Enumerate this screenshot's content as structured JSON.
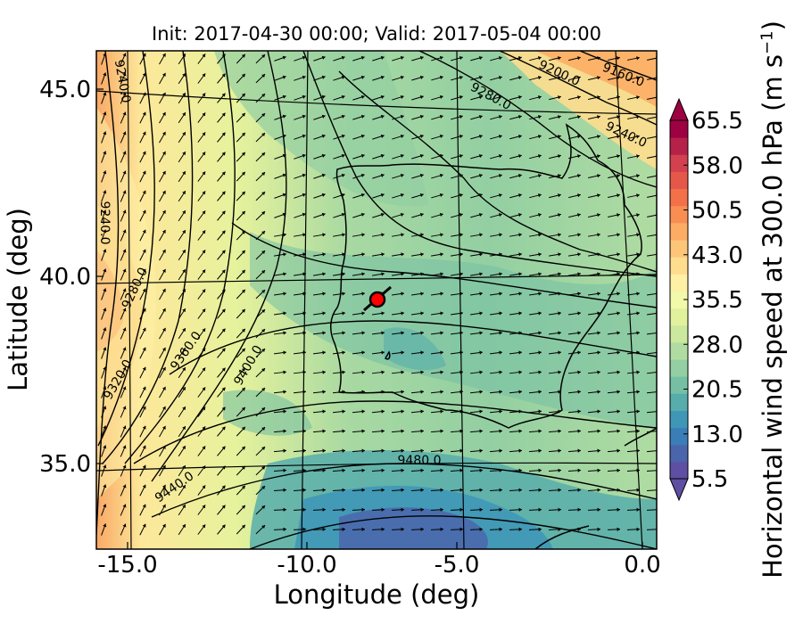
{
  "title": "Init: 2017-04-30 00:00; Valid: 2017-05-04 00:00",
  "xlabel": "Longitude (deg)",
  "ylabel": "Latitude (deg)",
  "colorbar": {
    "label": "Horizontal wind speed at 300.0 hPa (m s",
    "label_exp": "−1",
    "label_close": ")",
    "ticks": [
      "65.5",
      "58.0",
      "50.5",
      "43.0",
      "35.5",
      "28.0",
      "20.5",
      "13.0",
      "5.5"
    ],
    "colors": [
      "#5e4fa2",
      "#4b65ad",
      "#3a7eb8",
      "#3f97b7",
      "#57adac",
      "#75c0a4",
      "#93cfa2",
      "#b0dca2",
      "#cbe89e",
      "#e2f29c",
      "#f2f9aa",
      "#fef0a5",
      "#fedd8e",
      "#fdc577",
      "#fdac63",
      "#f98e52",
      "#f37148",
      "#e55749",
      "#d3414e",
      "#b62149",
      "#9e0142"
    ],
    "extend_low": "#5e4fa2",
    "extend_high": "#9e0142"
  },
  "x_ticks": [
    "-15.0",
    "-10.0",
    "-5.0",
    "0.0"
  ],
  "y_ticks": [
    "45.0",
    "40.0",
    "35.0"
  ],
  "contour_labels": [
    "9240.0",
    "9200.0",
    "9160.0",
    "9280.0",
    "9240.0",
    "9240.0",
    "9280.0",
    "9320.0",
    "9360.0",
    "9400.0",
    "9440.0",
    "9480.0"
  ],
  "marker": {
    "color": "#ff0000",
    "lon": -7.6,
    "lat": 39.3
  }
}
